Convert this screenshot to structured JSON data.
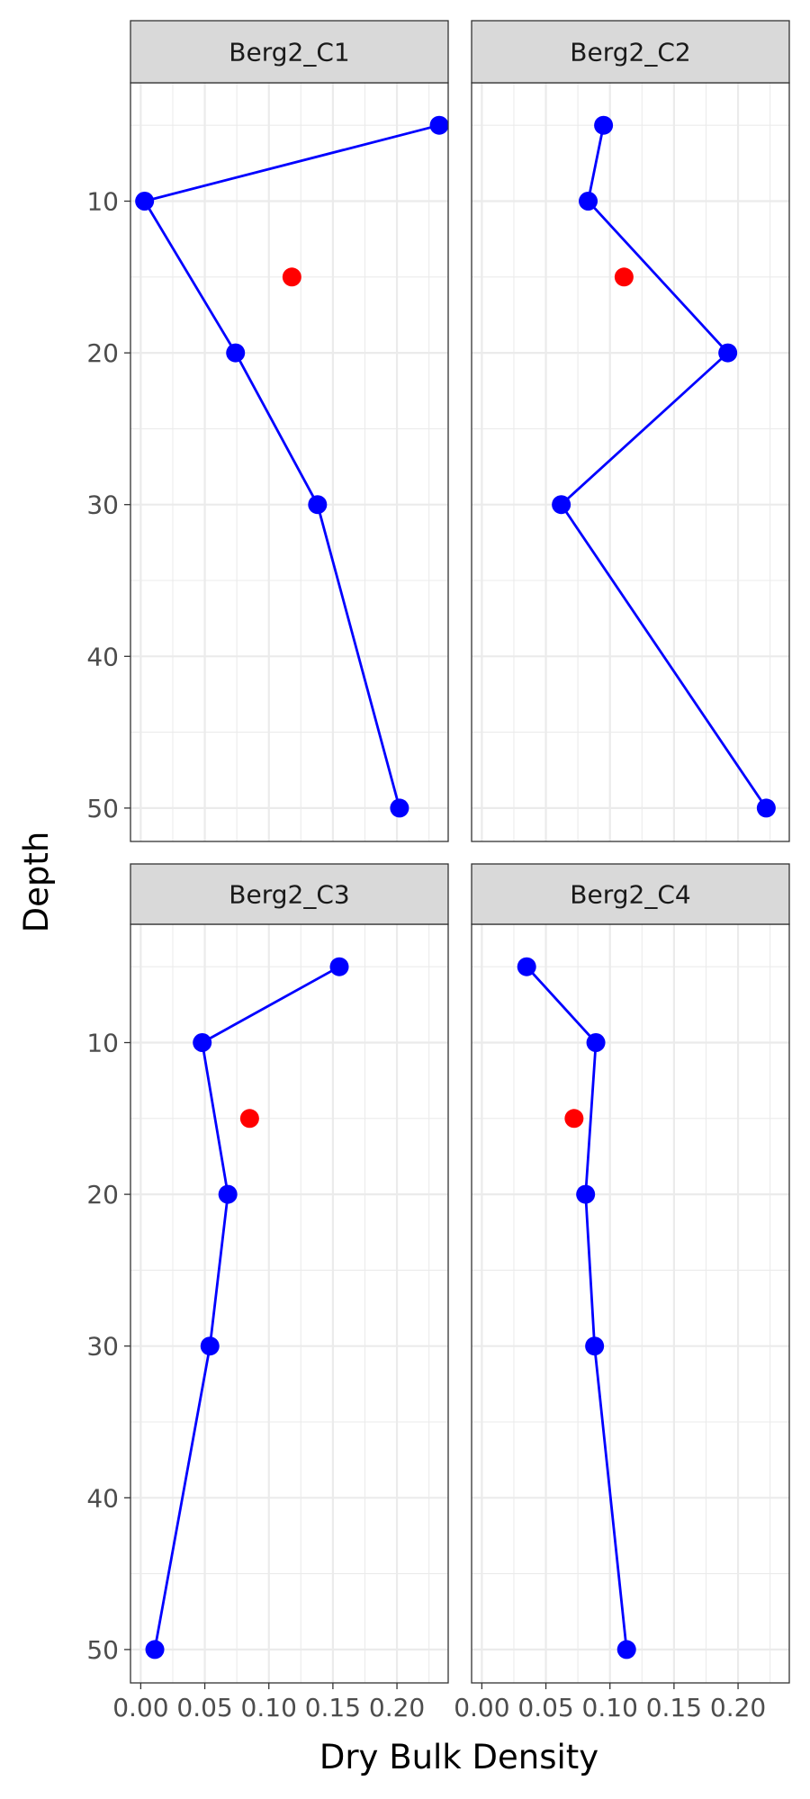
{
  "chart_data": {
    "type": "line",
    "layout": "facet-grid-2x2",
    "xlabel": "Dry Bulk Density",
    "ylabel": "Depth",
    "xlim": [
      -0.008,
      0.24
    ],
    "ylim": [
      2.2,
      52.2
    ],
    "y_reversed": true,
    "x_ticks": [
      0.0,
      0.05,
      0.1,
      0.15,
      0.2
    ],
    "x_tick_labels": [
      "0.00",
      "0.05",
      "0.10",
      "0.15",
      "0.20"
    ],
    "y_ticks": [
      10,
      20,
      30,
      40,
      50
    ],
    "y_tick_labels": [
      "10",
      "20",
      "30",
      "40",
      "50"
    ],
    "grid": true,
    "colors": {
      "line": "#0000ff",
      "point": "#0000ff",
      "highlight": "#ff0000",
      "strip": "#d9d9d9"
    },
    "panels": [
      {
        "title": "Berg2_C1",
        "series": [
          {
            "depth": [
              5,
              10,
              20,
              30,
              50
            ],
            "value": [
              0.233,
              0.003,
              0.074,
              0.138,
              0.202
            ]
          }
        ],
        "highlight": {
          "depth": 15,
          "value": 0.118
        }
      },
      {
        "title": "Berg2_C2",
        "series": [
          {
            "depth": [
              5,
              10,
              20,
              30,
              50
            ],
            "value": [
              0.095,
              0.083,
              0.192,
              0.062,
              0.222
            ]
          }
        ],
        "highlight": {
          "depth": 15,
          "value": 0.111
        }
      },
      {
        "title": "Berg2_C3",
        "series": [
          {
            "depth": [
              5,
              10,
              20,
              30,
              50
            ],
            "value": [
              0.155,
              0.048,
              0.068,
              0.054,
              0.011
            ]
          }
        ],
        "highlight": {
          "depth": 15,
          "value": 0.085
        }
      },
      {
        "title": "Berg2_C4",
        "series": [
          {
            "depth": [
              5,
              10,
              20,
              30,
              50
            ],
            "value": [
              0.035,
              0.089,
              0.081,
              0.088,
              0.113
            ]
          }
        ],
        "highlight": {
          "depth": 15,
          "value": 0.072
        }
      }
    ]
  }
}
